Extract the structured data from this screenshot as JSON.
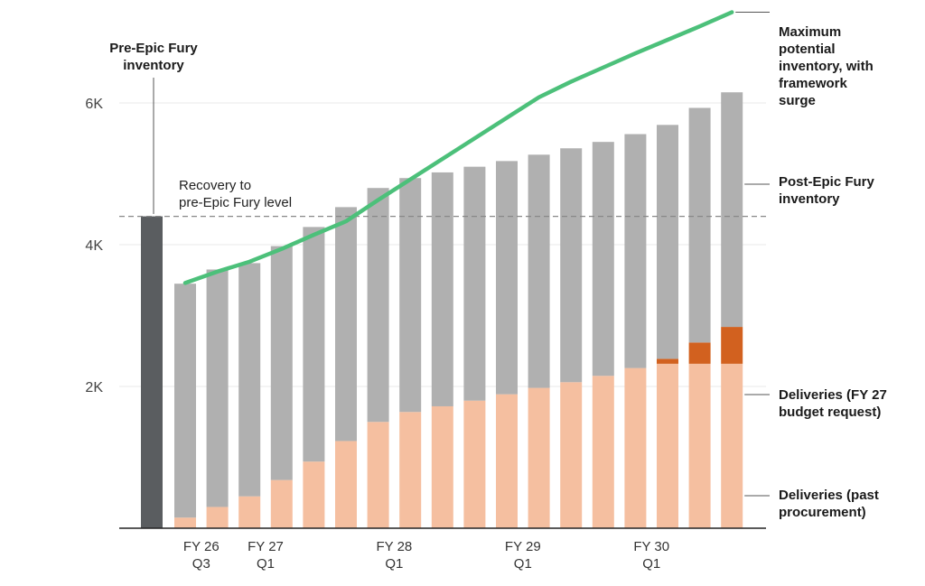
{
  "chart_data": {
    "type": "bar",
    "stacked": true,
    "y_ticks": [
      {
        "value": 2000,
        "label": "2K"
      },
      {
        "value": 4000,
        "label": "4K"
      },
      {
        "value": 6000,
        "label": "6K"
      }
    ],
    "ylim": [
      0,
      7000
    ],
    "grid": true,
    "x_labels": [
      {
        "bar_index": 1,
        "line1": "FY 26",
        "line2": "Q3"
      },
      {
        "bar_index": 3,
        "line1": "FY 27",
        "line2": "Q1"
      },
      {
        "bar_index": 7,
        "line1": "FY 28",
        "line2": "Q1"
      },
      {
        "bar_index": 11,
        "line1": "FY 29",
        "line2": "Q1"
      },
      {
        "bar_index": 15,
        "line1": "FY 30",
        "line2": "Q1"
      }
    ],
    "pre_bar": {
      "value": 4400,
      "color": "#5a5d60"
    },
    "series": [
      {
        "key": "past",
        "values": [
          150,
          300,
          450,
          680,
          940,
          1230,
          1500,
          1640,
          1720,
          1800,
          1890,
          1980,
          2060,
          2150,
          2260,
          2320,
          2320,
          2320
        ]
      },
      {
        "key": "budget",
        "values": [
          0,
          0,
          0,
          0,
          0,
          0,
          0,
          0,
          0,
          0,
          0,
          0,
          0,
          0,
          0,
          70,
          300,
          520
        ]
      },
      {
        "key": "post",
        "values": [
          3300,
          3350,
          3290,
          3300,
          3310,
          3300,
          3300,
          3300,
          3300,
          3300,
          3290,
          3290,
          3300,
          3300,
          3300,
          3300,
          3310,
          3310
        ]
      }
    ],
    "surge_line": [
      3460,
      3620,
      3760,
      3940,
      4140,
      4330,
      4630,
      4920,
      5210,
      5500,
      5790,
      6080,
      6300,
      6500,
      6700,
      6890,
      7080,
      7280
    ],
    "reference_line": {
      "value": 4400,
      "label_line1": "Recovery to",
      "label_line2": "pre-Epic Fury level"
    },
    "colors": {
      "past": "#f5bfa0",
      "budget": "#d2611f",
      "post": "#b0b0b0",
      "surge": "#4cc07a",
      "grid": "#e8e8e8",
      "axis": "#222222",
      "reference": "#888888",
      "leader": "#555555"
    },
    "annotations": {
      "pre": [
        "Pre-Epic Fury",
        "inventory"
      ],
      "surge": [
        "Maximum",
        "potential",
        "inventory, with",
        "framework",
        "surge"
      ],
      "post": [
        "Post-Epic Fury",
        "inventory"
      ],
      "budget": [
        "Deliveries (FY 27",
        "budget request)"
      ],
      "past": [
        "Deliveries (past",
        "procurement)"
      ]
    }
  }
}
